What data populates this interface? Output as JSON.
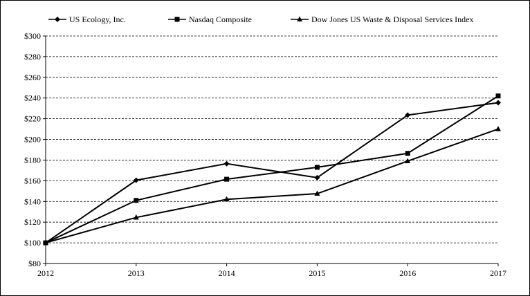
{
  "chart_data": {
    "type": "line",
    "title": "",
    "xlabel": "",
    "ylabel": "",
    "x": [
      "2012",
      "2013",
      "2014",
      "2015",
      "2016",
      "2017"
    ],
    "ylim": [
      80,
      300
    ],
    "yticks": [
      80,
      100,
      120,
      140,
      160,
      180,
      200,
      220,
      240,
      260,
      280,
      300
    ],
    "ytick_labels": [
      "$80",
      "$100",
      "$120",
      "$140",
      "$160",
      "$180",
      "$200",
      "$220",
      "$240",
      "$260",
      "$280",
      "$300"
    ],
    "grid": "horizontal-dashed",
    "legend_position": "top",
    "series": [
      {
        "name": "US Ecology, Inc.",
        "marker": "diamond",
        "color": "#000000",
        "values": [
          100,
          160.5,
          176.5,
          163,
          223.5,
          235.5
        ]
      },
      {
        "name": "Nasdaq Composite",
        "marker": "square",
        "color": "#000000",
        "values": [
          100,
          141,
          161.5,
          173,
          186.5,
          242
        ]
      },
      {
        "name": "Dow Jones US Waste & Disposal Services Index",
        "marker": "triangle",
        "color": "#000000",
        "values": [
          100,
          124.5,
          142,
          147.5,
          179,
          210
        ]
      }
    ]
  }
}
